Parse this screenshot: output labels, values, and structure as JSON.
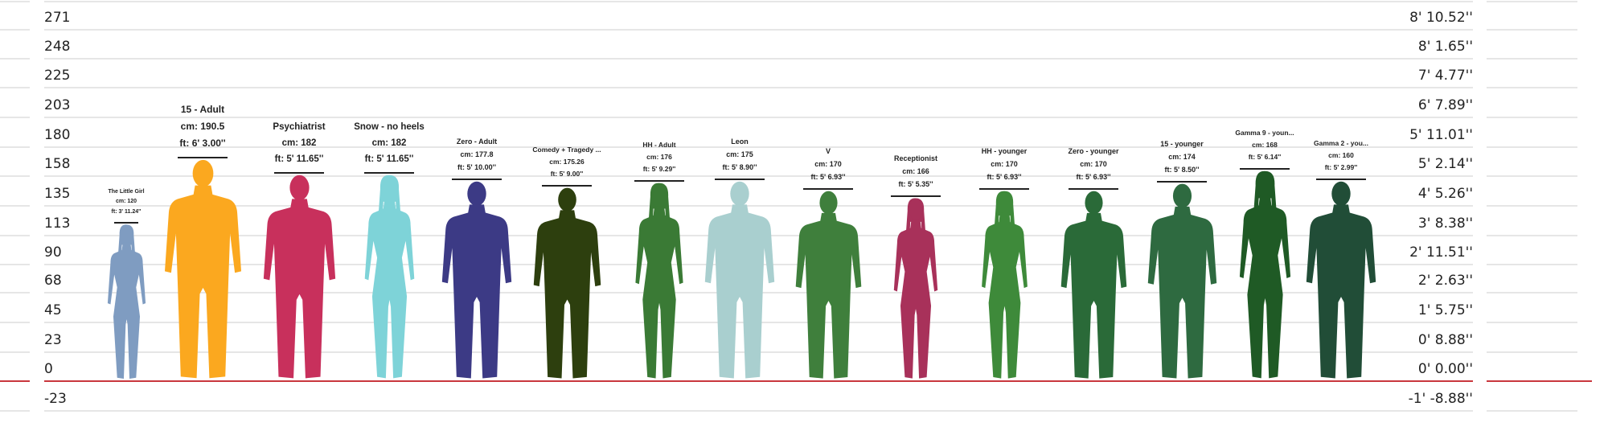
{
  "chart_data": {
    "type": "bar",
    "title": "",
    "xlabel": "",
    "ylabel": "",
    "ylim": [
      -23,
      271
    ],
    "grid": true,
    "left_ticks": [
      "271",
      "248",
      "225",
      "203",
      "180",
      "158",
      "135",
      "113",
      "90",
      "68",
      "45",
      "23",
      "0",
      "-23"
    ],
    "right_ticks": [
      "8' 10.52''",
      "8' 1.65''",
      "7' 4.77''",
      "6' 7.89''",
      "5' 11.01''",
      "5' 2.14''",
      "4' 5.26''",
      "3' 8.38''",
      "2' 11.51''",
      "2' 2.63''",
      "1' 5.75''",
      "0' 8.88''",
      "0' 0.00''",
      "-1' -8.88''"
    ],
    "categories": [
      "The Little Girl",
      "15 - Adult",
      "Psychiatrist",
      "Snow - no heels",
      "Zero - Adult",
      "Comedy + Tragedy ...",
      "HH - Adult",
      "Leon",
      "V",
      "Receptionist",
      "HH - younger",
      "Zero - younger",
      "15 - younger",
      "Gamma 9 - youn...",
      "Gamma 2 - you..."
    ],
    "values": [
      120,
      190.5,
      182,
      182,
      177.8,
      175.26,
      176,
      175,
      170,
      166,
      170,
      170,
      174,
      168,
      160
    ],
    "cm_labels": [
      "cm: 120",
      "cm: 190.5",
      "cm: 182",
      "cm: 182",
      "cm: 177.8",
      "cm: 175.26",
      "cm: 176",
      "cm: 175",
      "cm: 170",
      "cm: 166",
      "cm: 170",
      "cm: 170",
      "cm: 174",
      "cm: 168",
      "cm: 160"
    ],
    "ft_labels": [
      "ft: 3' 11.24''",
      "ft: 6' 3.00''",
      "ft: 5' 11.65''",
      "ft: 5' 11.65''",
      "ft: 5' 10.00''",
      "ft: 5' 9.00''",
      "ft: 5' 9.29''",
      "ft: 5' 8.90''",
      "ft: 5' 6.93''",
      "ft: 5' 5.35''",
      "ft: 5' 6.93''",
      "ft: 5' 6.93''",
      "ft: 5' 8.50''",
      "ft: 5' 6.14''",
      "ft: 5' 2.99''"
    ],
    "silhouettes": [
      "female",
      "male",
      "male",
      "female",
      "male",
      "male",
      "female",
      "male",
      "male",
      "female",
      "female",
      "male",
      "male",
      "female",
      "male"
    ],
    "colors": [
      "#7f9cc1",
      "#fba81f",
      "#c8305c",
      "#7ed3d8",
      "#3c3a85",
      "#2d3f0e",
      "#3a7a35",
      "#a9cfcf",
      "#3f7f3c",
      "#a8315a",
      "#3e8a3a",
      "#2a6a38",
      "#2e6a40",
      "#1f5a25",
      "#214d37"
    ],
    "zero_line_color": "#c9373d"
  }
}
